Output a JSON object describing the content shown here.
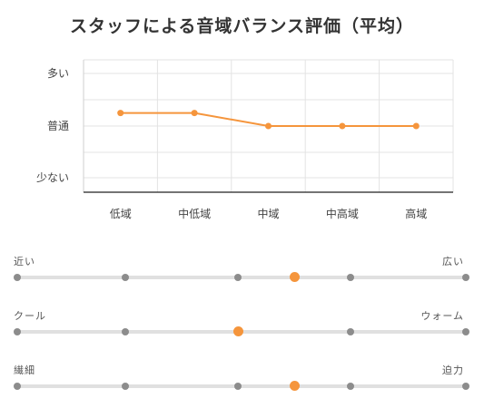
{
  "chart_data": {
    "type": "line",
    "title": "スタッフによる音域バランス評価（平均）",
    "categories": [
      "低域",
      "中低域",
      "中域",
      "中高域",
      "高域"
    ],
    "y_tick_labels": [
      "少ない",
      "普通",
      "多い"
    ],
    "ylim": [
      -1,
      1
    ],
    "values": [
      0.25,
      0.25,
      0.0,
      0.0,
      0.0
    ],
    "line_color": "#f5953c",
    "grid": true
  },
  "sliders": [
    {
      "left_label": "近い",
      "right_label": "広い",
      "steps": 5,
      "value": 3
    },
    {
      "left_label": "クール",
      "right_label": "ウォーム",
      "steps": 5,
      "value": 2
    },
    {
      "left_label": "繊細",
      "right_label": "迫力",
      "steps": 5,
      "value": 3
    }
  ],
  "colors": {
    "accent": "#f5953c",
    "dot": "#8c8c8c",
    "track": "#e0e0e0"
  }
}
